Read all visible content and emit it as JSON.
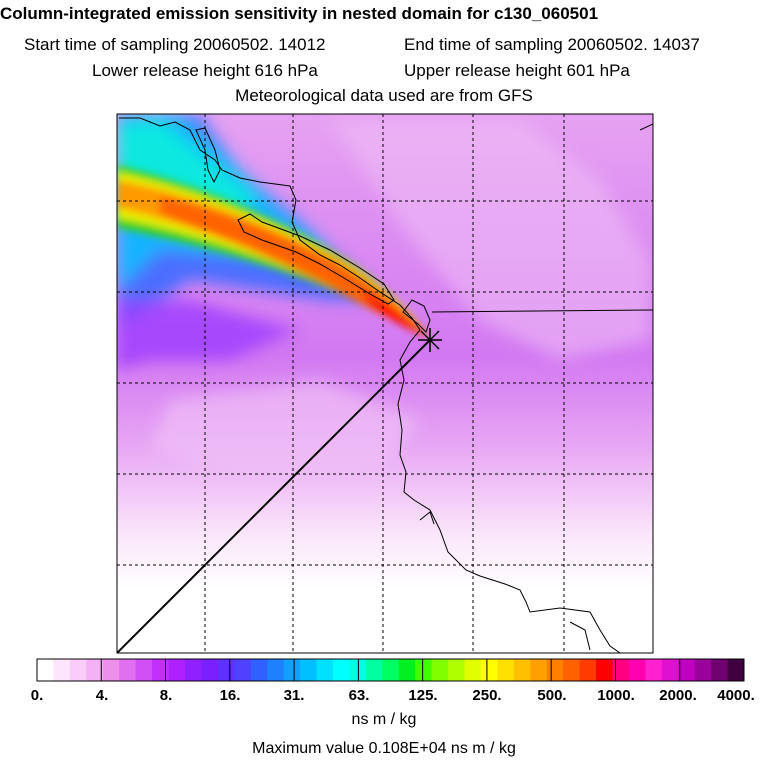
{
  "header": {
    "title": "Column-integrated emission sensitivity in nested domain for c130_060501",
    "start_time": "Start time of sampling 20060502. 14012",
    "end_time": "End time of sampling 20060502. 14037",
    "lower_release": "Lower release height  616 hPa",
    "upper_release": "Upper release height  601 hPa",
    "met_data": "Meteorological data used are from GFS"
  },
  "colorbar": {
    "labels": [
      "0.",
      "4.",
      "8.",
      "16.",
      "31.",
      "63.",
      "125.",
      "250.",
      "500.",
      "1000.",
      "2000.",
      "4000."
    ],
    "units": "ns m / kg",
    "colors": [
      "#ffffff",
      "#fde6fd",
      "#f9ccf9",
      "#f4b0f4",
      "#ec90ec",
      "#e070f0",
      "#d050f6",
      "#c030fa",
      "#b020ff",
      "#9020ff",
      "#7a20ff",
      "#6030ff",
      "#5040ff",
      "#3060ff",
      "#1e80ff",
      "#10a0ff",
      "#00c0ff",
      "#00e0ff",
      "#00ffff",
      "#00ffe0",
      "#00ffa0",
      "#00ff60",
      "#00f020",
      "#40ff00",
      "#80ff00",
      "#b0ff00",
      "#e0ff00",
      "#ffff00",
      "#ffe000",
      "#ffc000",
      "#ffa000",
      "#ff8000",
      "#ff6000",
      "#ff3c00",
      "#ff0000",
      "#ff0080",
      "#ff00b0",
      "#ff20d0",
      "#e010d0",
      "#c000c0",
      "#9a009a",
      "#700070",
      "#400040"
    ]
  },
  "max_value": "Maximum value  0.108E+04 ns m / kg"
}
